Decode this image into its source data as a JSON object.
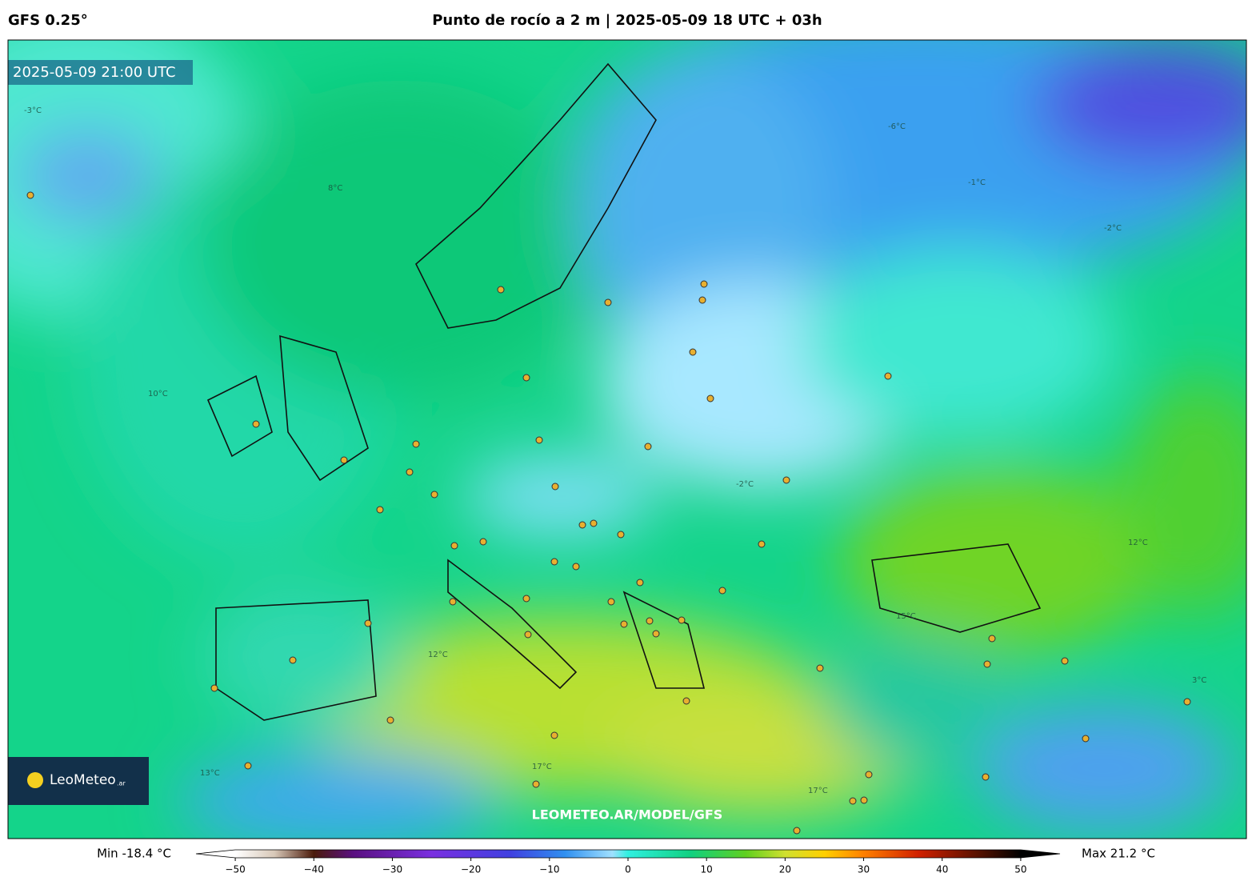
{
  "header": {
    "model": "GFS 0.25°",
    "title": "Punto de rocío a 2 m | 2025-05-09 18 UTC + 03h"
  },
  "map": {
    "timestamp": "2025-05-09 21:00 UTC",
    "logo": "LeoMeteo",
    "logo_suffix": ".ar",
    "watermark": "LEOMETEO.AR/MODEL/GFS",
    "contour_labels": [
      "-3°C",
      "-6°C",
      "-1°C",
      "-2°C",
      "-2°C",
      "8°C",
      "10°C",
      "12°C",
      "13°C",
      "15°C",
      "17°C",
      "17°C",
      "12°C",
      "3°C"
    ]
  },
  "colorbar": {
    "min_label": "Min -18.4 °C",
    "max_label": "Max 21.2 °C",
    "lim": [
      -55,
      55
    ],
    "ticks": [
      {
        "value": -50,
        "label": "−50"
      },
      {
        "value": -40,
        "label": "−40"
      },
      {
        "value": -30,
        "label": "−30"
      },
      {
        "value": -20,
        "label": "−20"
      },
      {
        "value": -10,
        "label": "−10"
      },
      0,
      10,
      20,
      30,
      40,
      50
    ],
    "colormap": [
      {
        "value": -50,
        "color": "#ffffff"
      },
      {
        "value": -45,
        "color": "#d8c8b8"
      },
      {
        "value": -40,
        "color": "#4a1a0a"
      },
      {
        "value": -35,
        "color": "#5a1080"
      },
      {
        "value": -25,
        "color": "#7a30e0"
      },
      {
        "value": -15,
        "color": "#4040e0"
      },
      {
        "value": -8,
        "color": "#3090f0"
      },
      {
        "value": -2,
        "color": "#a0e0ff"
      },
      {
        "value": 0,
        "color": "#30f0e0"
      },
      {
        "value": 8,
        "color": "#10d080"
      },
      {
        "value": 15,
        "color": "#60d020"
      },
      {
        "value": 20,
        "color": "#d0e030"
      },
      {
        "value": 25,
        "color": "#ffd000"
      },
      {
        "value": 30,
        "color": "#ff8000"
      },
      {
        "value": 37,
        "color": "#d02000"
      },
      {
        "value": 45,
        "color": "#501000"
      },
      {
        "value": 50,
        "color": "#000000"
      }
    ]
  }
}
